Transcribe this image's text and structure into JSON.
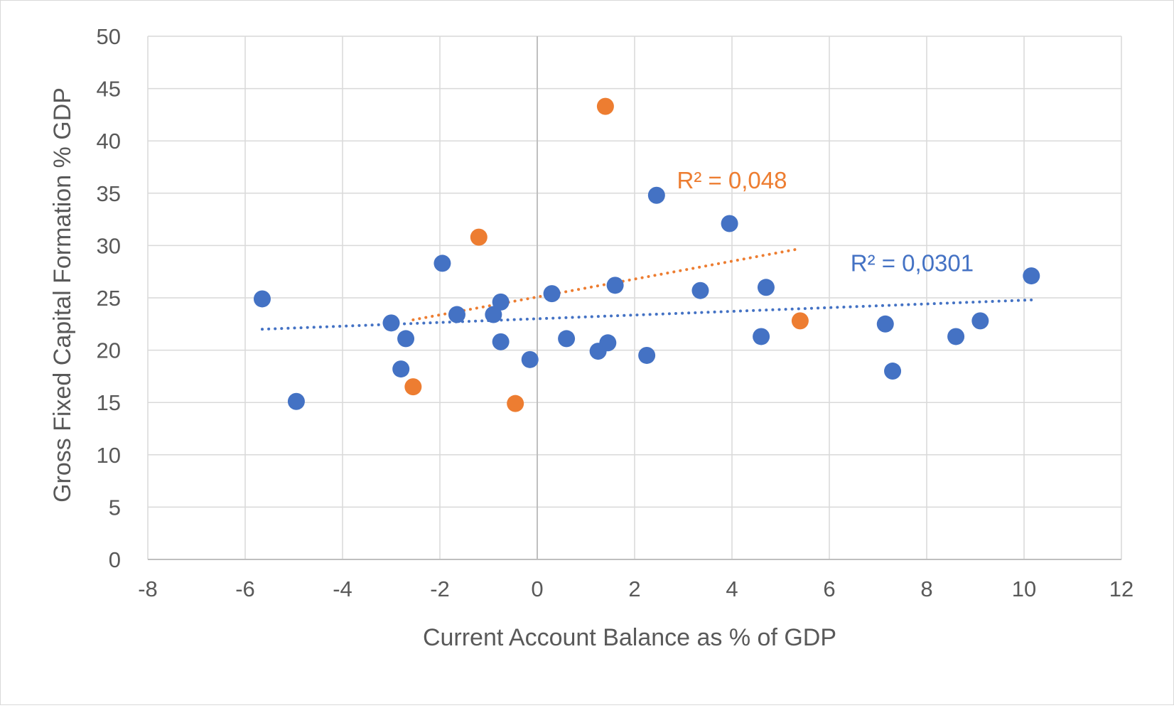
{
  "chart_data": {
    "type": "scatter",
    "xlabel": "Current Account Balance as % of GDP",
    "ylabel": "Gross Fixed Capital Formation % GDP",
    "xlim": [
      -8,
      12
    ],
    "ylim": [
      0,
      50
    ],
    "xticks": [
      -8,
      -6,
      -4,
      -2,
      0,
      2,
      4,
      6,
      8,
      10,
      12
    ],
    "yticks": [
      0,
      5,
      10,
      15,
      20,
      25,
      30,
      35,
      40,
      45,
      50
    ],
    "grid": true,
    "legend": "none",
    "series": [
      {
        "color": "#4472c4",
        "points": [
          [
            -5.65,
            24.9
          ],
          [
            -4.95,
            15.1
          ],
          [
            -3.0,
            22.6
          ],
          [
            -2.8,
            18.2
          ],
          [
            -2.7,
            21.1
          ],
          [
            -1.95,
            28.3
          ],
          [
            -1.65,
            23.4
          ],
          [
            -0.9,
            23.4
          ],
          [
            -0.75,
            24.6
          ],
          [
            -0.75,
            20.8
          ],
          [
            -0.15,
            19.1
          ],
          [
            0.3,
            25.4
          ],
          [
            0.6,
            21.1
          ],
          [
            1.25,
            19.9
          ],
          [
            1.45,
            20.7
          ],
          [
            1.6,
            26.2
          ],
          [
            2.25,
            19.5
          ],
          [
            2.45,
            34.8
          ],
          [
            3.35,
            25.7
          ],
          [
            3.95,
            32.1
          ],
          [
            4.6,
            21.3
          ],
          [
            4.7,
            26.0
          ],
          [
            7.15,
            22.5
          ],
          [
            7.3,
            18.0
          ],
          [
            8.6,
            21.3
          ],
          [
            9.1,
            22.8
          ],
          [
            10.15,
            27.1
          ]
        ],
        "trendline": {
          "x": [
            -5.65,
            10.15
          ],
          "y": [
            22.0,
            24.8
          ],
          "r2_label": "R² = 0,0301"
        }
      },
      {
        "color": "#ed7d31",
        "points": [
          [
            -2.55,
            16.5
          ],
          [
            -1.2,
            30.8
          ],
          [
            -0.45,
            14.9
          ],
          [
            1.4,
            43.3
          ],
          [
            5.4,
            22.8
          ]
        ],
        "trendline": {
          "x": [
            -2.55,
            5.4
          ],
          "y": [
            22.9,
            29.7
          ],
          "r2_label": "R² = 0,048"
        }
      }
    ]
  }
}
